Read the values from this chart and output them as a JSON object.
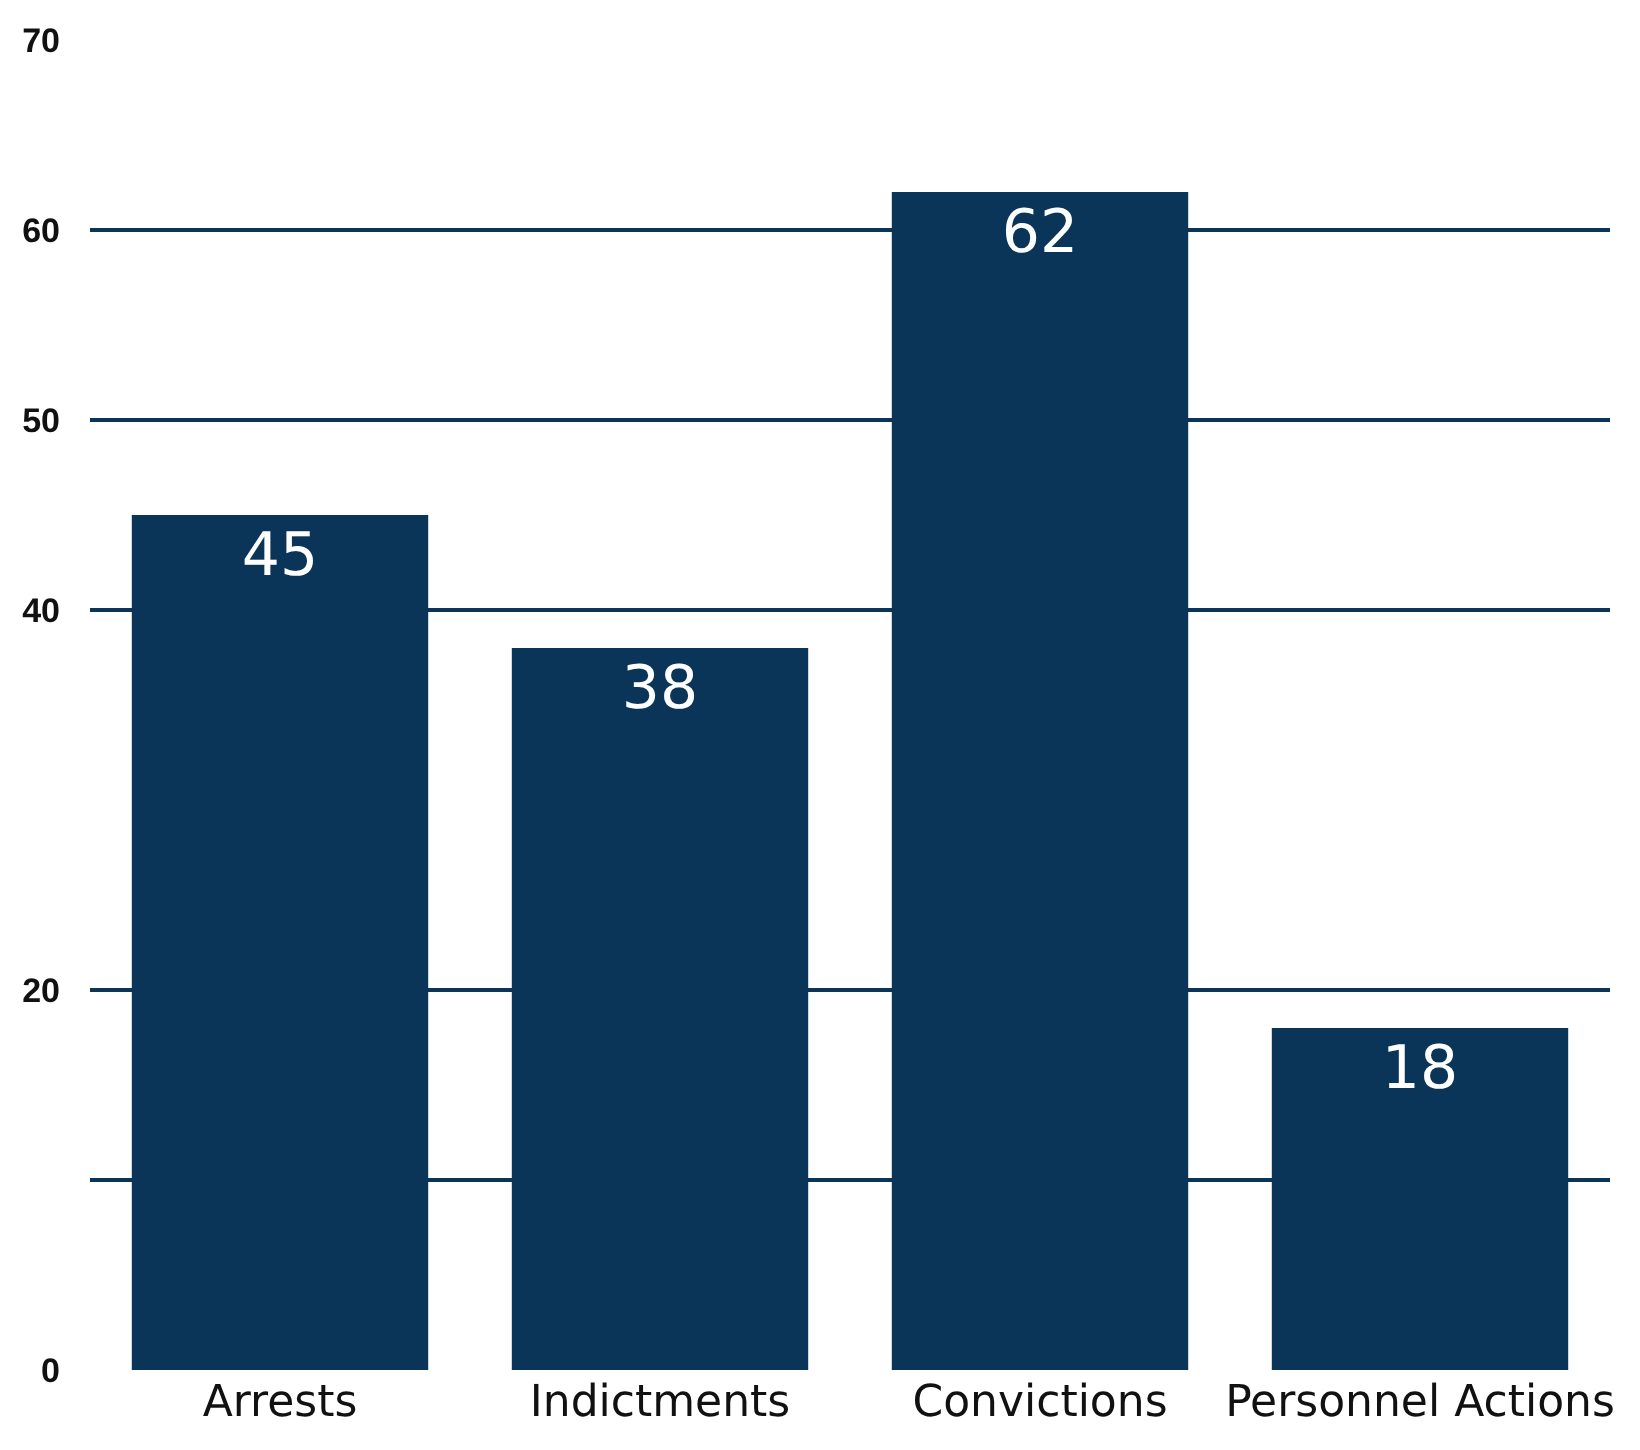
{
  "chart_data": {
    "type": "bar",
    "categories": [
      "Arrests",
      "Indictments",
      "Convictions",
      "Personnel Actions"
    ],
    "values": [
      45,
      38,
      62,
      18
    ],
    "color": "#0b3558",
    "data_labels": true,
    "ylim": [
      0,
      70
    ],
    "yticks": [
      0,
      {
        "value": 10,
        "label": null
      },
      20,
      40,
      50,
      60,
      70
    ],
    "grid": "y"
  }
}
